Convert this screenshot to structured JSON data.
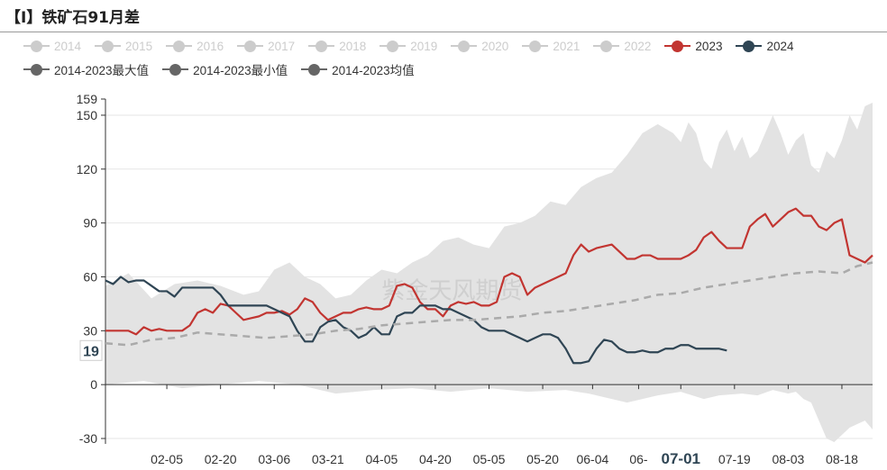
{
  "title": "【I】铁矿石91月差",
  "watermark": "紫金天风期货",
  "legend": [
    {
      "label": "2014",
      "color": "#cccccc",
      "active": false
    },
    {
      "label": "2015",
      "color": "#cccccc",
      "active": false
    },
    {
      "label": "2016",
      "color": "#cccccc",
      "active": false
    },
    {
      "label": "2017",
      "color": "#cccccc",
      "active": false
    },
    {
      "label": "2018",
      "color": "#cccccc",
      "active": false
    },
    {
      "label": "2019",
      "color": "#cccccc",
      "active": false
    },
    {
      "label": "2020",
      "color": "#cccccc",
      "active": false
    },
    {
      "label": "2021",
      "color": "#cccccc",
      "active": false
    },
    {
      "label": "2022",
      "color": "#cccccc",
      "active": false
    },
    {
      "label": "2023",
      "color": "#c23531",
      "active": true
    },
    {
      "label": "2024",
      "color": "#2f4554",
      "active": true
    },
    {
      "label": "2014-2023最大值",
      "color": "#666666",
      "active": true
    },
    {
      "label": "2014-2023最小值",
      "color": "#666666",
      "active": true
    },
    {
      "label": "2014-2023均值",
      "color": "#666666",
      "active": true
    }
  ],
  "chart_data": {
    "type": "line",
    "title": "【I】铁矿石91月差",
    "x_tick_labels": [
      "02-05",
      "02-20",
      "03-06",
      "03-21",
      "04-05",
      "04-20",
      "05-05",
      "05-20",
      "06-04",
      "06-",
      "07-01",
      "07-19",
      "08-03",
      "08-18"
    ],
    "highlight_x_label": "07-01",
    "y_ticks": [
      -30,
      0,
      30,
      60,
      90,
      120,
      150,
      159
    ],
    "ylim": [
      -33,
      159
    ],
    "y_tooltip_value": "19",
    "x_domain": [
      0,
      100
    ],
    "x_ticks_at": [
      8,
      15,
      22,
      29,
      36,
      43,
      50,
      57,
      63.5,
      69.5,
      75,
      82,
      89,
      96
    ],
    "band_upper": [
      [
        0,
        55
      ],
      [
        3,
        62
      ],
      [
        6,
        48
      ],
      [
        9,
        56
      ],
      [
        12,
        58
      ],
      [
        15,
        55
      ],
      [
        18,
        50
      ],
      [
        20,
        52
      ],
      [
        22,
        64
      ],
      [
        24,
        68
      ],
      [
        26,
        60
      ],
      [
        28,
        56
      ],
      [
        30,
        48
      ],
      [
        32,
        50
      ],
      [
        34,
        58
      ],
      [
        36,
        64
      ],
      [
        38,
        62
      ],
      [
        40,
        68
      ],
      [
        42,
        72
      ],
      [
        44,
        80
      ],
      [
        46,
        82
      ],
      [
        48,
        78
      ],
      [
        50,
        76
      ],
      [
        52,
        88
      ],
      [
        54,
        90
      ],
      [
        56,
        94
      ],
      [
        58,
        102
      ],
      [
        60,
        100
      ],
      [
        62,
        110
      ],
      [
        64,
        115
      ],
      [
        66,
        118
      ],
      [
        68,
        128
      ],
      [
        70,
        140
      ],
      [
        72,
        145
      ],
      [
        74,
        140
      ],
      [
        75,
        135
      ],
      [
        76,
        146
      ],
      [
        77,
        140
      ],
      [
        78,
        125
      ],
      [
        79,
        120
      ],
      [
        80,
        135
      ],
      [
        81,
        142
      ],
      [
        82,
        130
      ],
      [
        83,
        138
      ],
      [
        84,
        126
      ],
      [
        85,
        130
      ],
      [
        86,
        140
      ],
      [
        87,
        150
      ],
      [
        88,
        140
      ],
      [
        89,
        128
      ],
      [
        90,
        136
      ],
      [
        91,
        140
      ],
      [
        92,
        122
      ],
      [
        93,
        118
      ],
      [
        94,
        130
      ],
      [
        95,
        126
      ],
      [
        96,
        136
      ],
      [
        97,
        150
      ],
      [
        98,
        142
      ],
      [
        99,
        155
      ],
      [
        100,
        157
      ]
    ],
    "band_lower": [
      [
        0,
        0
      ],
      [
        5,
        2
      ],
      [
        10,
        -2
      ],
      [
        15,
        0
      ],
      [
        20,
        2
      ],
      [
        25,
        0
      ],
      [
        30,
        -5
      ],
      [
        35,
        -3
      ],
      [
        40,
        -2
      ],
      [
        45,
        -4
      ],
      [
        50,
        -2
      ],
      [
        55,
        -4
      ],
      [
        60,
        -3
      ],
      [
        63,
        -5
      ],
      [
        66,
        -8
      ],
      [
        68,
        -10
      ],
      [
        70,
        -8
      ],
      [
        72,
        -6
      ],
      [
        75,
        -4
      ],
      [
        78,
        -8
      ],
      [
        80,
        -6
      ],
      [
        83,
        -5
      ],
      [
        85,
        -6
      ],
      [
        87,
        -3
      ],
      [
        89,
        -5
      ],
      [
        90,
        -4
      ],
      [
        91,
        -8
      ],
      [
        92,
        -10
      ],
      [
        93,
        -20
      ],
      [
        94,
        -30
      ],
      [
        95,
        -32
      ],
      [
        96,
        -28
      ],
      [
        97,
        -24
      ],
      [
        98,
        -22
      ],
      [
        99,
        -20
      ],
      [
        100,
        -25
      ]
    ],
    "series": [
      {
        "name": "2023",
        "color": "#c23531",
        "points": [
          [
            0,
            30
          ],
          [
            3,
            30
          ],
          [
            4,
            28
          ],
          [
            5,
            32
          ],
          [
            6,
            30
          ],
          [
            7,
            31
          ],
          [
            8,
            30
          ],
          [
            9,
            30
          ],
          [
            10,
            30
          ],
          [
            11,
            33
          ],
          [
            12,
            40
          ],
          [
            13,
            42
          ],
          [
            14,
            40
          ],
          [
            15,
            45
          ],
          [
            16,
            44
          ],
          [
            17,
            40
          ],
          [
            18,
            36
          ],
          [
            19,
            37
          ],
          [
            20,
            38
          ],
          [
            21,
            40
          ],
          [
            22,
            40
          ],
          [
            23,
            41
          ],
          [
            24,
            39
          ],
          [
            25,
            42
          ],
          [
            26,
            48
          ],
          [
            27,
            46
          ],
          [
            28,
            40
          ],
          [
            29,
            36
          ],
          [
            30,
            38
          ],
          [
            31,
            40
          ],
          [
            32,
            40
          ],
          [
            33,
            42
          ],
          [
            34,
            43
          ],
          [
            35,
            42
          ],
          [
            36,
            42
          ],
          [
            37,
            44
          ],
          [
            38,
            55
          ],
          [
            39,
            56
          ],
          [
            40,
            54
          ],
          [
            41,
            46
          ],
          [
            42,
            42
          ],
          [
            43,
            42
          ],
          [
            44,
            38
          ],
          [
            45,
            44
          ],
          [
            46,
            46
          ],
          [
            47,
            45
          ],
          [
            48,
            46
          ],
          [
            49,
            44
          ],
          [
            50,
            44
          ],
          [
            51,
            46
          ],
          [
            52,
            60
          ],
          [
            53,
            62
          ],
          [
            54,
            60
          ],
          [
            55,
            50
          ],
          [
            56,
            54
          ],
          [
            57,
            56
          ],
          [
            58,
            58
          ],
          [
            59,
            60
          ],
          [
            60,
            62
          ],
          [
            61,
            72
          ],
          [
            62,
            78
          ],
          [
            63,
            74
          ],
          [
            64,
            76
          ],
          [
            65,
            77
          ],
          [
            66,
            78
          ],
          [
            67,
            74
          ],
          [
            68,
            70
          ],
          [
            69,
            70
          ],
          [
            70,
            72
          ],
          [
            71,
            72
          ],
          [
            72,
            70
          ],
          [
            73,
            70
          ],
          [
            74,
            70
          ],
          [
            75,
            70
          ],
          [
            76,
            72
          ],
          [
            77,
            75
          ],
          [
            78,
            82
          ],
          [
            79,
            85
          ],
          [
            80,
            80
          ],
          [
            81,
            76
          ],
          [
            82,
            76
          ],
          [
            83,
            76
          ],
          [
            84,
            88
          ],
          [
            85,
            92
          ],
          [
            86,
            95
          ],
          [
            87,
            88
          ],
          [
            88,
            92
          ],
          [
            89,
            96
          ],
          [
            90,
            98
          ],
          [
            91,
            94
          ],
          [
            92,
            94
          ],
          [
            93,
            88
          ],
          [
            94,
            86
          ],
          [
            95,
            90
          ],
          [
            96,
            92
          ],
          [
            97,
            72
          ],
          [
            98,
            70
          ],
          [
            99,
            68
          ],
          [
            100,
            72
          ]
        ]
      },
      {
        "name": "2024",
        "color": "#2f4554",
        "points": [
          [
            0,
            58
          ],
          [
            1,
            56
          ],
          [
            2,
            60
          ],
          [
            3,
            57
          ],
          [
            4,
            58
          ],
          [
            5,
            58
          ],
          [
            6,
            55
          ],
          [
            7,
            52
          ],
          [
            8,
            52
          ],
          [
            9,
            49
          ],
          [
            10,
            54
          ],
          [
            11,
            54
          ],
          [
            12,
            54
          ],
          [
            13,
            54
          ],
          [
            14,
            54
          ],
          [
            15,
            50
          ],
          [
            16,
            44
          ],
          [
            17,
            44
          ],
          [
            18,
            44
          ],
          [
            19,
            44
          ],
          [
            20,
            44
          ],
          [
            21,
            44
          ],
          [
            22,
            42
          ],
          [
            23,
            40
          ],
          [
            24,
            38
          ],
          [
            25,
            30
          ],
          [
            26,
            24
          ],
          [
            27,
            24
          ],
          [
            28,
            32
          ],
          [
            29,
            35
          ],
          [
            30,
            36
          ],
          [
            31,
            32
          ],
          [
            32,
            30
          ],
          [
            33,
            26
          ],
          [
            34,
            28
          ],
          [
            35,
            32
          ],
          [
            36,
            28
          ],
          [
            37,
            28
          ],
          [
            38,
            38
          ],
          [
            39,
            40
          ],
          [
            40,
            40
          ],
          [
            41,
            44
          ],
          [
            42,
            44
          ],
          [
            43,
            44
          ],
          [
            44,
            42
          ],
          [
            45,
            42
          ],
          [
            46,
            40
          ],
          [
            47,
            38
          ],
          [
            48,
            36
          ],
          [
            49,
            32
          ],
          [
            50,
            30
          ],
          [
            51,
            30
          ],
          [
            52,
            30
          ],
          [
            53,
            28
          ],
          [
            54,
            26
          ],
          [
            55,
            24
          ],
          [
            56,
            26
          ],
          [
            57,
            28
          ],
          [
            58,
            28
          ],
          [
            59,
            26
          ],
          [
            60,
            20
          ],
          [
            61,
            12
          ],
          [
            62,
            12
          ],
          [
            63,
            13
          ],
          [
            64,
            20
          ],
          [
            65,
            25
          ],
          [
            66,
            24
          ],
          [
            67,
            20
          ],
          [
            68,
            18
          ],
          [
            69,
            18
          ],
          [
            70,
            19
          ],
          [
            71,
            18
          ],
          [
            72,
            18
          ],
          [
            73,
            20
          ],
          [
            74,
            20
          ],
          [
            75,
            22
          ],
          [
            76,
            22
          ],
          [
            77,
            20
          ],
          [
            78,
            20
          ],
          [
            79,
            20
          ],
          [
            80,
            20
          ],
          [
            81,
            19
          ]
        ]
      },
      {
        "name": "2014-2023均值",
        "color": "#aaaaaa",
        "points": [
          [
            0,
            23
          ],
          [
            3,
            22
          ],
          [
            6,
            25
          ],
          [
            9,
            26
          ],
          [
            12,
            29
          ],
          [
            15,
            28
          ],
          [
            18,
            27
          ],
          [
            21,
            26
          ],
          [
            24,
            27
          ],
          [
            27,
            28
          ],
          [
            30,
            30
          ],
          [
            33,
            31
          ],
          [
            36,
            33
          ],
          [
            39,
            34
          ],
          [
            42,
            35
          ],
          [
            45,
            36
          ],
          [
            48,
            36
          ],
          [
            51,
            37
          ],
          [
            54,
            38
          ],
          [
            57,
            40
          ],
          [
            60,
            41
          ],
          [
            63,
            43
          ],
          [
            66,
            45
          ],
          [
            69,
            47
          ],
          [
            72,
            50
          ],
          [
            75,
            51
          ],
          [
            78,
            54
          ],
          [
            81,
            56
          ],
          [
            84,
            58
          ],
          [
            87,
            60
          ],
          [
            90,
            62
          ],
          [
            93,
            63
          ],
          [
            96,
            62
          ],
          [
            98,
            66
          ],
          [
            100,
            68
          ]
        ]
      }
    ]
  }
}
